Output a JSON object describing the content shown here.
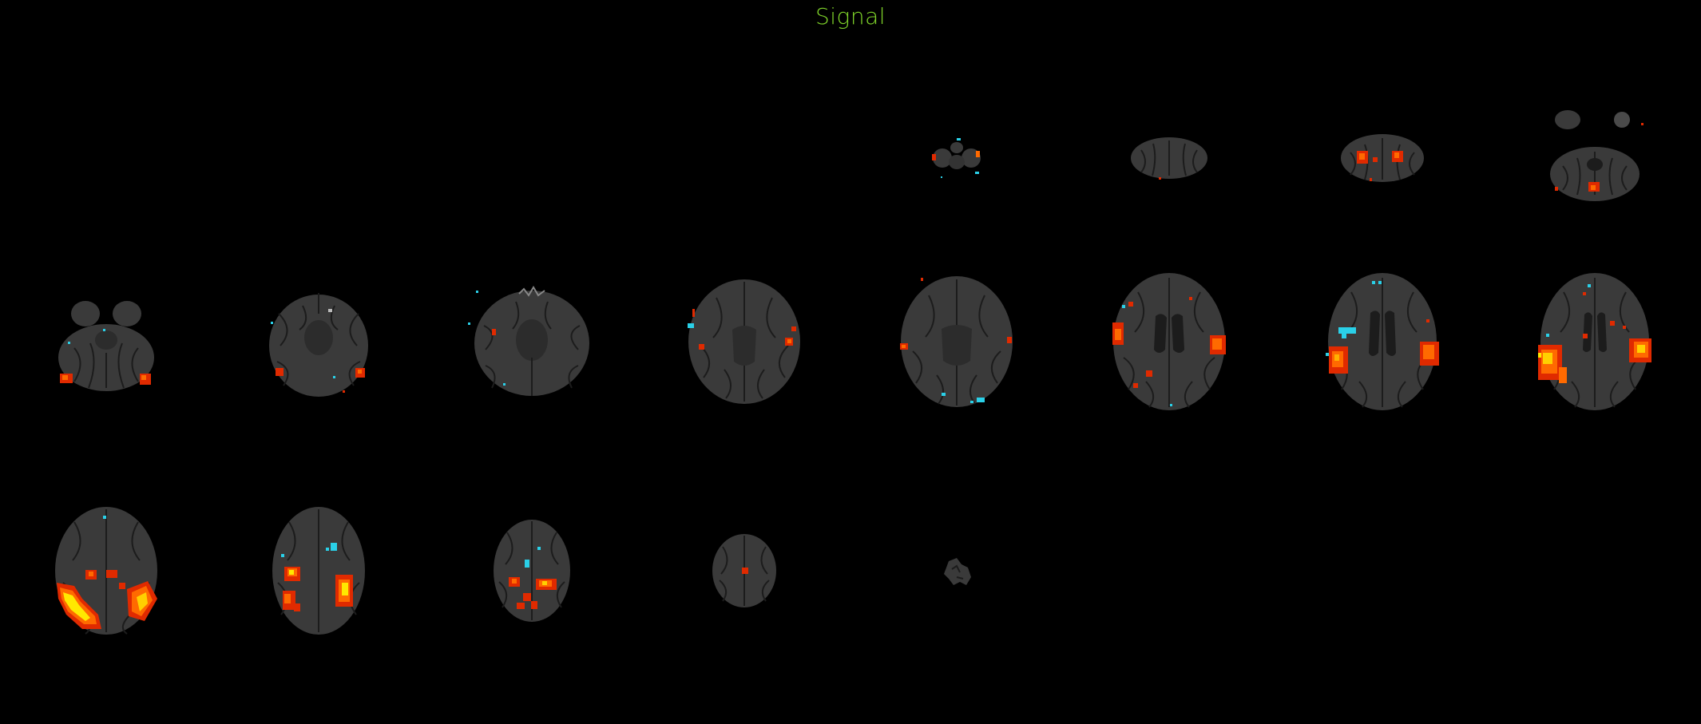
{
  "title": "Signal",
  "colors": {
    "background": "#000000",
    "title": "#7fd42a",
    "brain": "#3a3a3a",
    "sulcus": "#1c1c1c",
    "positive_low": "#e02a00",
    "positive_mid": "#ff6a00",
    "positive_high": "#ffe800",
    "negative": "#2ad0e8"
  },
  "montage": {
    "orientation": "axial",
    "columns": 8,
    "rows": 3,
    "slices": [
      {
        "brain": "none",
        "activation": "none"
      },
      {
        "brain": "none",
        "activation": "none"
      },
      {
        "brain": "none",
        "activation": "none"
      },
      {
        "brain": "none",
        "activation": "none"
      },
      {
        "brain": "fragments",
        "activation": "sparse"
      },
      {
        "brain": "cerebellum",
        "activation": "sparse"
      },
      {
        "brain": "cerebellum",
        "activation": "moderate"
      },
      {
        "brain": "cerebellum",
        "activation": "moderate"
      },
      {
        "brain": "temporal",
        "activation": "moderate"
      },
      {
        "brain": "temporal",
        "activation": "moderate"
      },
      {
        "brain": "midbrain",
        "activation": "sparse"
      },
      {
        "brain": "axial",
        "activation": "moderate"
      },
      {
        "brain": "axial",
        "activation": "moderate"
      },
      {
        "brain": "ventricles",
        "activation": "strong"
      },
      {
        "brain": "ventricles",
        "activation": "strong"
      },
      {
        "brain": "ventricles",
        "activation": "strong"
      },
      {
        "brain": "superior",
        "activation": "very-strong"
      },
      {
        "brain": "superior",
        "activation": "very-strong"
      },
      {
        "brain": "superior",
        "activation": "strong"
      },
      {
        "brain": "vertex",
        "activation": "sparse"
      },
      {
        "brain": "fragments",
        "activation": "none"
      },
      {
        "brain": "none",
        "activation": "none"
      },
      {
        "brain": "none",
        "activation": "none"
      },
      {
        "brain": "none",
        "activation": "none"
      }
    ]
  }
}
